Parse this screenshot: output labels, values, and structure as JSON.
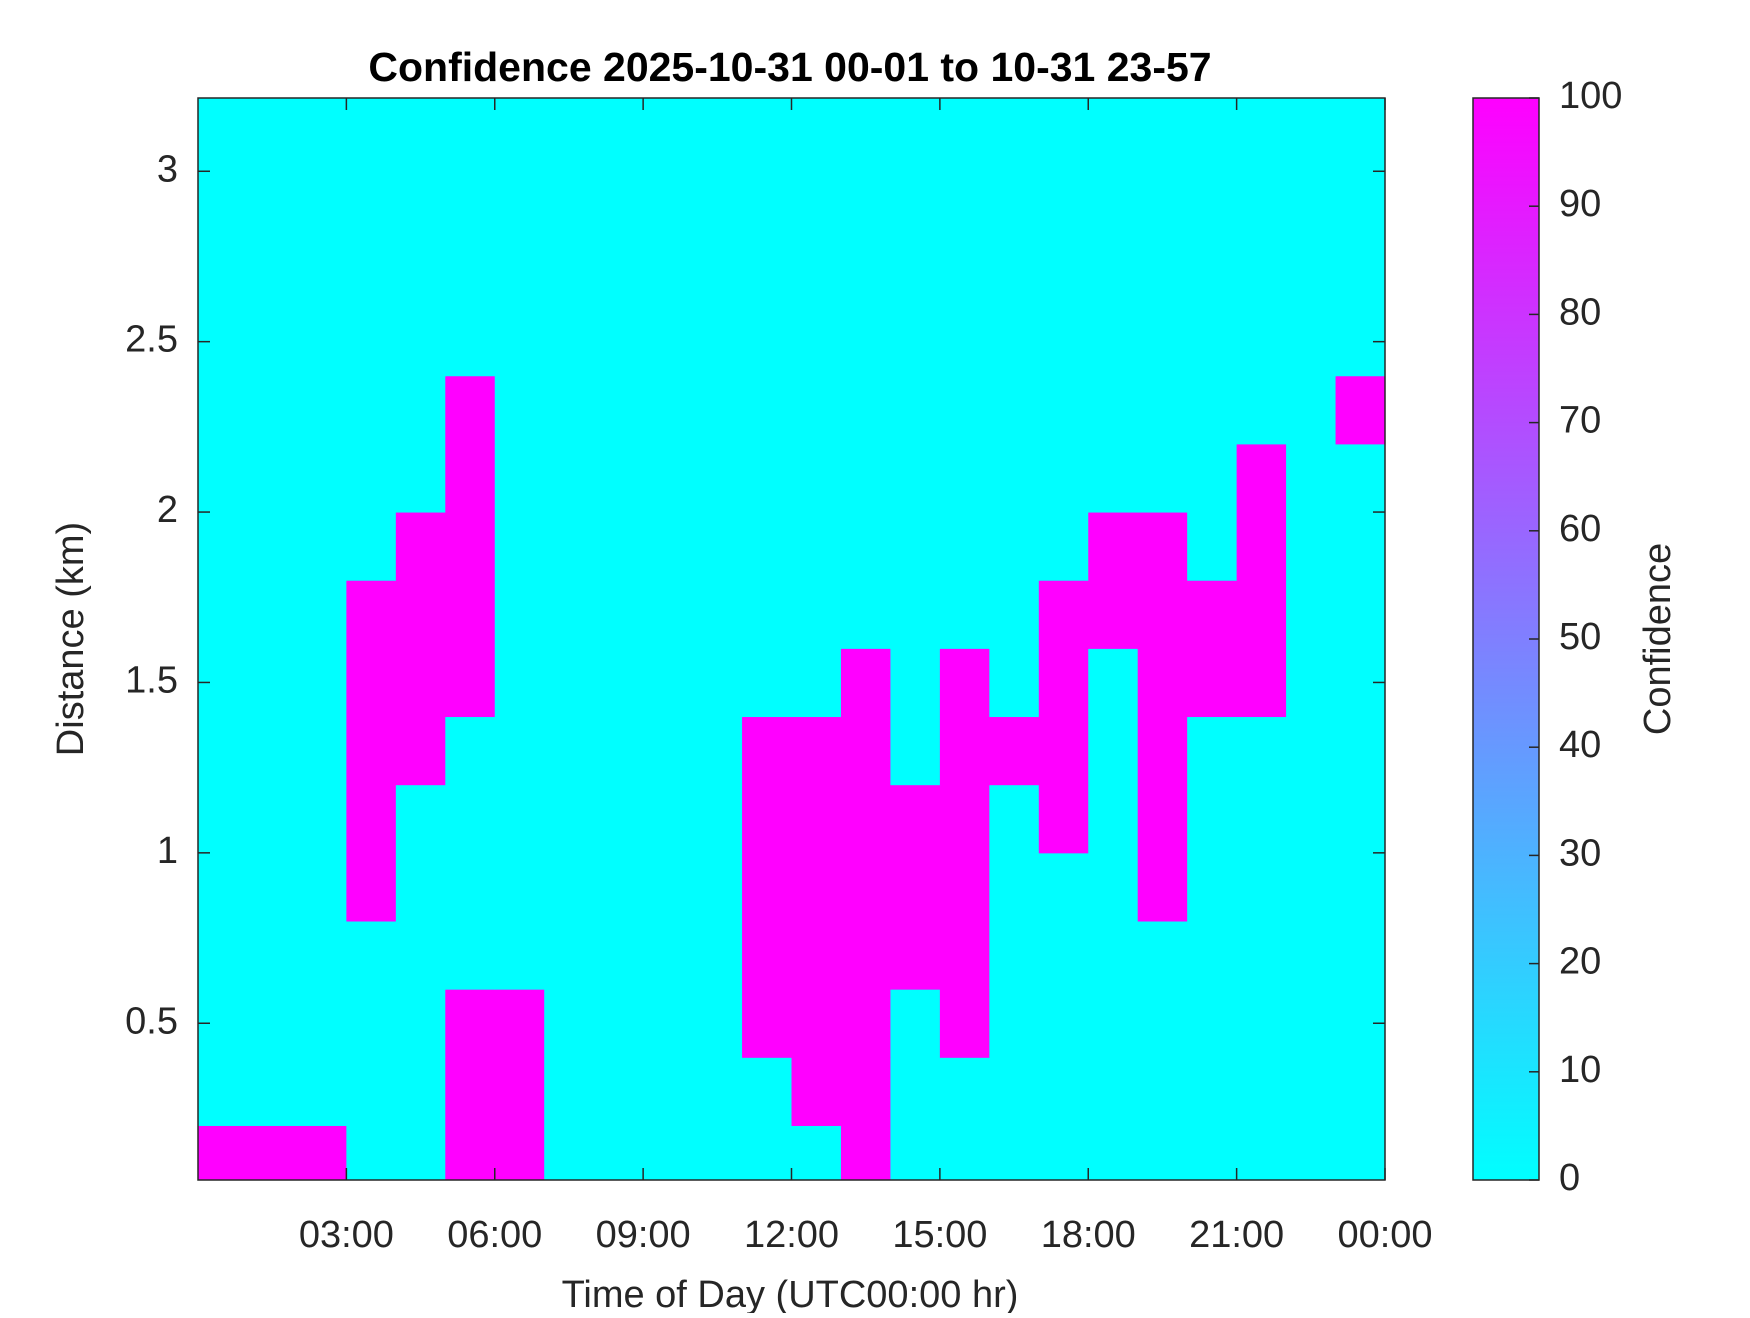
{
  "chart_data": {
    "type": "heatmap",
    "title": "Confidence 2025-10-31 00-01 to 10-31 23-57",
    "x_label": "Time of Day (UTC00:00 hr)",
    "y_label": "Distance (km)",
    "colorbar_label": "Confidence",
    "colormap": [
      "#00ffff",
      "#ff00ff"
    ],
    "clim": [
      0,
      100
    ],
    "cticks": [
      0,
      10,
      20,
      30,
      40,
      50,
      60,
      70,
      80,
      90,
      100
    ],
    "xlim": [
      0,
      24
    ],
    "xticks": [
      {
        "value": 3,
        "label": "03:00"
      },
      {
        "value": 6,
        "label": "06:00"
      },
      {
        "value": 9,
        "label": "09:00"
      },
      {
        "value": 12,
        "label": "12:00"
      },
      {
        "value": 15,
        "label": "15:00"
      },
      {
        "value": 18,
        "label": "18:00"
      },
      {
        "value": 21,
        "label": "21:00"
      },
      {
        "value": 24,
        "label": "00:00"
      }
    ],
    "ylim": [
      0.04,
      3.215
    ],
    "yticks": [
      0.5,
      1,
      1.5,
      2,
      2.5,
      3
    ],
    "x": [
      0.5,
      1.5,
      2.5,
      3.5,
      4.5,
      5.5,
      6.5,
      7.5,
      8.5,
      9.5,
      10.5,
      11.5,
      12.5,
      13.5,
      14.5,
      15.5,
      16.5,
      17.5,
      18.5,
      19.5,
      20.5,
      21.5,
      22.5,
      23.5
    ],
    "y": [
      0.1,
      0.3,
      0.5,
      0.7,
      0.9,
      1.1,
      1.3,
      1.5,
      1.7,
      1.9,
      2.1,
      2.3,
      2.5,
      2.7,
      2.9,
      3.1
    ],
    "z": [
      [
        100,
        100,
        100,
        0,
        0,
        100,
        100,
        0,
        0,
        0,
        0,
        0,
        0,
        100,
        0,
        0,
        0,
        0,
        0,
        0,
        0,
        0,
        0,
        0
      ],
      [
        0,
        0,
        0,
        0,
        0,
        100,
        100,
        0,
        0,
        0,
        0,
        0,
        100,
        100,
        0,
        0,
        0,
        0,
        0,
        0,
        0,
        0,
        0,
        0
      ],
      [
        0,
        0,
        0,
        0,
        0,
        100,
        100,
        0,
        0,
        0,
        0,
        100,
        100,
        100,
        0,
        100,
        0,
        0,
        0,
        0,
        0,
        0,
        0,
        0
      ],
      [
        0,
        0,
        0,
        0,
        0,
        0,
        0,
        0,
        0,
        0,
        0,
        100,
        100,
        100,
        100,
        100,
        0,
        0,
        0,
        0,
        0,
        0,
        0,
        0
      ],
      [
        0,
        0,
        0,
        100,
        0,
        0,
        0,
        0,
        0,
        0,
        0,
        100,
        100,
        100,
        100,
        100,
        0,
        0,
        0,
        100,
        0,
        0,
        0,
        0
      ],
      [
        0,
        0,
        0,
        100,
        0,
        0,
        0,
        0,
        0,
        0,
        0,
        100,
        100,
        100,
        100,
        100,
        0,
        100,
        0,
        100,
        0,
        0,
        0,
        0
      ],
      [
        0,
        0,
        0,
        100,
        100,
        0,
        0,
        0,
        0,
        0,
        0,
        100,
        100,
        100,
        0,
        100,
        100,
        100,
        0,
        100,
        0,
        0,
        0,
        0
      ],
      [
        0,
        0,
        0,
        100,
        100,
        100,
        0,
        0,
        0,
        0,
        0,
        0,
        0,
        100,
        0,
        100,
        0,
        100,
        0,
        100,
        100,
        100,
        0,
        0
      ],
      [
        0,
        0,
        0,
        100,
        100,
        100,
        0,
        0,
        0,
        0,
        0,
        0,
        0,
        0,
        0,
        0,
        0,
        100,
        100,
        100,
        100,
        100,
        0,
        0
      ],
      [
        0,
        0,
        0,
        0,
        100,
        100,
        0,
        0,
        0,
        0,
        0,
        0,
        0,
        0,
        0,
        0,
        0,
        0,
        100,
        100,
        0,
        100,
        0,
        0
      ],
      [
        0,
        0,
        0,
        0,
        0,
        100,
        0,
        0,
        0,
        0,
        0,
        0,
        0,
        0,
        0,
        0,
        0,
        0,
        0,
        0,
        0,
        100,
        0,
        0
      ],
      [
        0,
        0,
        0,
        0,
        0,
        100,
        0,
        0,
        0,
        0,
        0,
        0,
        0,
        0,
        0,
        0,
        0,
        0,
        0,
        0,
        0,
        0,
        0,
        100
      ],
      [
        0,
        0,
        0,
        0,
        0,
        0,
        0,
        0,
        0,
        0,
        0,
        0,
        0,
        0,
        0,
        0,
        0,
        0,
        0,
        0,
        0,
        0,
        0,
        0
      ],
      [
        0,
        0,
        0,
        0,
        0,
        0,
        0,
        0,
        0,
        0,
        0,
        0,
        0,
        0,
        0,
        0,
        0,
        0,
        0,
        0,
        0,
        0,
        0,
        0
      ],
      [
        0,
        0,
        0,
        0,
        0,
        0,
        0,
        0,
        0,
        0,
        0,
        0,
        0,
        0,
        0,
        0,
        0,
        0,
        0,
        0,
        0,
        0,
        0,
        0
      ],
      [
        0,
        0,
        0,
        0,
        0,
        0,
        0,
        0,
        0,
        0,
        0,
        0,
        0,
        0,
        0,
        0,
        0,
        0,
        0,
        0,
        0,
        0,
        0,
        0
      ]
    ]
  }
}
